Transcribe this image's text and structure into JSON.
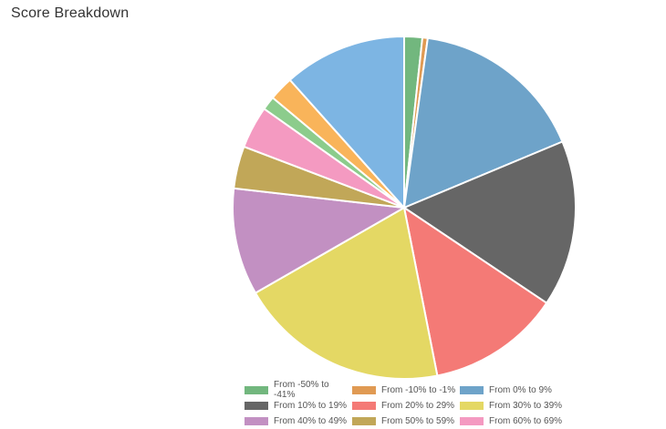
{
  "header": {
    "title": "Score Breakdown"
  },
  "chart_data": {
    "type": "pie",
    "title": "Score Breakdown",
    "legend_position": "bottom",
    "slices": [
      {
        "label": "From -50% to -41%",
        "value": 1.7,
        "color": "#72b77e"
      },
      {
        "label": "From -10% to -1%",
        "value": 0.5,
        "color": "#e09a53"
      },
      {
        "label": "From 0% to 9%",
        "value": 16.5,
        "color": "#6ea3c9"
      },
      {
        "label": "From 10% to 19%",
        "value": 15.7,
        "color": "#666666"
      },
      {
        "label": "From 20% to 29%",
        "value": 12.5,
        "color": "#f47a76"
      },
      {
        "label": "From 30% to 39%",
        "value": 19.8,
        "color": "#e4d864"
      },
      {
        "label": "From 40% to 49%",
        "value": 10.1,
        "color": "#c290c2"
      },
      {
        "label": "From 50% to 59%",
        "value": 4.0,
        "color": "#c1a758"
      },
      {
        "label": "From 60% to 69%",
        "value": 4.0,
        "color": "#f49ac1"
      },
      {
        "label": "",
        "value": 1.3,
        "color": "#8ccc8c"
      },
      {
        "label": "",
        "value": 2.3,
        "color": "#f9b45a"
      },
      {
        "label": "",
        "value": 11.6,
        "color": "#7db5e3"
      }
    ]
  }
}
